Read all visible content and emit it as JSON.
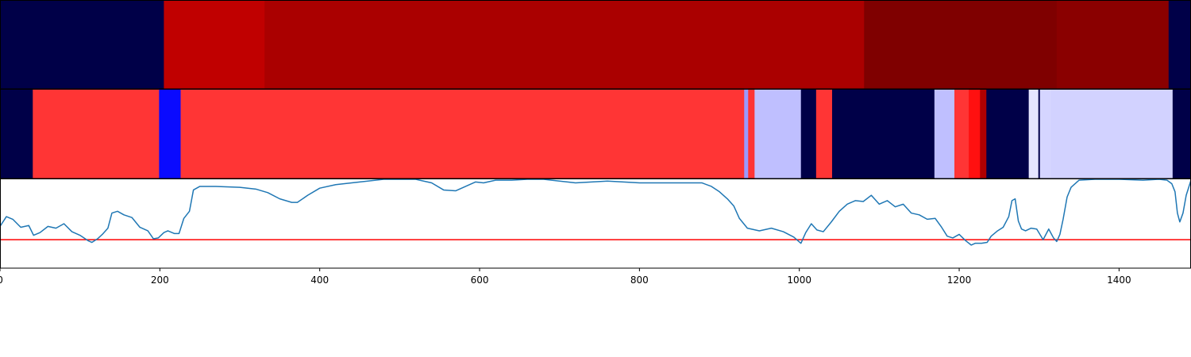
{
  "chart_data": [
    {
      "type": "heatmap",
      "title": "",
      "xlim": [
        0,
        1490
      ],
      "segments": [
        {
          "start": 0,
          "end": 205,
          "color": "#000048"
        },
        {
          "start": 205,
          "end": 331,
          "color": "#c00000"
        },
        {
          "start": 331,
          "end": 1081,
          "color": "#aa0000"
        },
        {
          "start": 1081,
          "end": 1322,
          "color": "#7f0000"
        },
        {
          "start": 1322,
          "end": 1462,
          "color": "#8a0000"
        },
        {
          "start": 1462,
          "end": 1490,
          "color": "#000048"
        }
      ]
    },
    {
      "type": "heatmap",
      "title": "",
      "xlim": [
        0,
        1490
      ],
      "segments": [
        {
          "start": 0,
          "end": 41,
          "color": "#000048"
        },
        {
          "start": 41,
          "end": 199,
          "color": "#ff3535"
        },
        {
          "start": 199,
          "end": 226,
          "color": "#0a0aff"
        },
        {
          "start": 226,
          "end": 931,
          "color": "#ff3535"
        },
        {
          "start": 931,
          "end": 936,
          "color": "#9a9aff"
        },
        {
          "start": 936,
          "end": 944,
          "color": "#ff3535"
        },
        {
          "start": 944,
          "end": 1002,
          "color": "#bfbfff"
        },
        {
          "start": 1002,
          "end": 1021,
          "color": "#000048"
        },
        {
          "start": 1021,
          "end": 1041,
          "color": "#ff3535"
        },
        {
          "start": 1041,
          "end": 1169,
          "color": "#000048"
        },
        {
          "start": 1169,
          "end": 1194,
          "color": "#bfbfff"
        },
        {
          "start": 1194,
          "end": 1212,
          "color": "#ff3535"
        },
        {
          "start": 1212,
          "end": 1226,
          "color": "#ff1010"
        },
        {
          "start": 1226,
          "end": 1234,
          "color": "#b00000"
        },
        {
          "start": 1234,
          "end": 1287,
          "color": "#000048"
        },
        {
          "start": 1287,
          "end": 1299,
          "color": "#e5e5ff"
        },
        {
          "start": 1299,
          "end": 1301,
          "color": "#000048"
        },
        {
          "start": 1301,
          "end": 1315,
          "color": "#d5d5ff"
        },
        {
          "start": 1315,
          "end": 1467,
          "color": "#d2d2ff"
        },
        {
          "start": 1467,
          "end": 1490,
          "color": "#000048"
        }
      ]
    },
    {
      "type": "line",
      "title": "",
      "xlabel": "",
      "ylabel": "",
      "xlim": [
        0,
        1490
      ],
      "ylim": [
        0,
        1
      ],
      "xticks": [
        0,
        200,
        400,
        600,
        800,
        1000,
        1200,
        1400
      ],
      "line_color": "#1f77b4",
      "threshold": 0.32,
      "threshold_color": "#ff0000",
      "series": [
        {
          "x": [
            0,
            8,
            16,
            26,
            36,
            42,
            50,
            60,
            70,
            80,
            90,
            100,
            110,
            115,
            122,
            128,
            135,
            140,
            147,
            155,
            165,
            175,
            185,
            192,
            198,
            205,
            210,
            218,
            224,
            230,
            237,
            242,
            250,
            270,
            300,
            320,
            335,
            350,
            365,
            372,
            385,
            400,
            420,
            440,
            460,
            480,
            500,
            520,
            540,
            555,
            570,
            585,
            595,
            605,
            620,
            640,
            660,
            680,
            700,
            720,
            740,
            760,
            780,
            800,
            820,
            840,
            860,
            878,
            890,
            900,
            910,
            918,
            925,
            935,
            950,
            965,
            980,
            993,
            1002,
            1008,
            1015,
            1022,
            1030,
            1040,
            1050,
            1060,
            1070,
            1080,
            1090,
            1100,
            1110,
            1120,
            1130,
            1140,
            1150,
            1160,
            1170,
            1178,
            1185,
            1192,
            1200,
            1208,
            1215,
            1220,
            1228,
            1235,
            1240,
            1248,
            1255,
            1262,
            1266,
            1270,
            1274,
            1278,
            1283,
            1290,
            1297,
            1305,
            1312,
            1318,
            1322,
            1326,
            1330,
            1335,
            1340,
            1350,
            1370,
            1400,
            1430,
            1450,
            1460,
            1466,
            1470,
            1473,
            1476,
            1480,
            1484,
            1490
          ],
          "y": [
            0.47,
            0.58,
            0.55,
            0.46,
            0.48,
            0.37,
            0.4,
            0.47,
            0.45,
            0.5,
            0.41,
            0.37,
            0.31,
            0.29,
            0.33,
            0.38,
            0.45,
            0.62,
            0.64,
            0.6,
            0.57,
            0.46,
            0.42,
            0.33,
            0.34,
            0.4,
            0.42,
            0.39,
            0.39,
            0.56,
            0.64,
            0.88,
            0.92,
            0.92,
            0.91,
            0.89,
            0.85,
            0.78,
            0.74,
            0.74,
            0.82,
            0.9,
            0.94,
            0.96,
            0.98,
            1.0,
            1.0,
            1.0,
            0.96,
            0.88,
            0.87,
            0.93,
            0.97,
            0.96,
            0.99,
            0.99,
            1.0,
            1.0,
            0.98,
            0.96,
            0.97,
            0.98,
            0.97,
            0.96,
            0.96,
            0.96,
            0.96,
            0.96,
            0.92,
            0.86,
            0.78,
            0.7,
            0.56,
            0.45,
            0.42,
            0.45,
            0.41,
            0.35,
            0.28,
            0.4,
            0.5,
            0.43,
            0.41,
            0.52,
            0.64,
            0.72,
            0.76,
            0.75,
            0.82,
            0.72,
            0.76,
            0.69,
            0.72,
            0.62,
            0.6,
            0.55,
            0.56,
            0.46,
            0.36,
            0.34,
            0.38,
            0.31,
            0.26,
            0.28,
            0.28,
            0.29,
            0.36,
            0.42,
            0.46,
            0.58,
            0.76,
            0.78,
            0.53,
            0.44,
            0.42,
            0.45,
            0.44,
            0.32,
            0.44,
            0.34,
            0.3,
            0.38,
            0.55,
            0.8,
            0.91,
            0.99,
            1.0,
            1.0,
            0.99,
            1.0,
            0.99,
            0.95,
            0.86,
            0.62,
            0.52,
            0.62,
            0.82,
            0.99
          ]
        }
      ]
    }
  ]
}
